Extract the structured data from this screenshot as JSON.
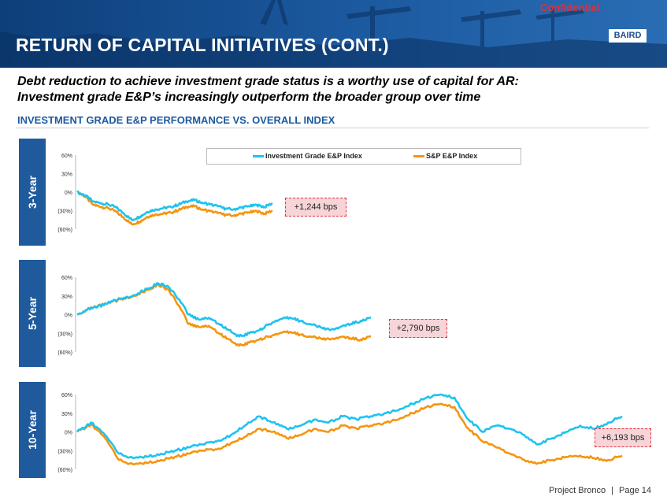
{
  "header": {
    "title": "RETURN OF CAPITAL INITIATIVES (CONT.)",
    "confidential": "Confidential",
    "logo": "BAIRD"
  },
  "subtitle": {
    "line1": "Debt reduction to achieve investment grade status is a worthy use of capital for AR:",
    "line2": "Investment grade E&P’s increasingly outperform the broader group over time"
  },
  "section_title": "INVESTMENT GRADE E&P PERFORMANCE VS. OVERALL INDEX",
  "legend": {
    "ig_label": "Investment Grade E&P Index",
    "sp_label": "S&P E&P Index"
  },
  "colors": {
    "ig": "#1ec3f0",
    "sp": "#f5950f",
    "tab": "#1f5a9c",
    "callout_border": "#e0303a",
    "callout_fill": "#f7d4d8"
  },
  "footer": {
    "project": "Project Bronco",
    "separator": "|",
    "page": "Page 14"
  },
  "chart_data": [
    {
      "type": "line",
      "title": "3-Year",
      "yticks": [
        "60%",
        "30%",
        "0%",
        "(30%)",
        "(60%)"
      ],
      "ylim": [
        -60,
        60
      ],
      "x": [
        0,
        1,
        2,
        3,
        4,
        5,
        6,
        7,
        8,
        9,
        10,
        11,
        12,
        13,
        14,
        15,
        16,
        17,
        18,
        19,
        20,
        21,
        22,
        23,
        24,
        25
      ],
      "series": [
        {
          "name": "Investment Grade E&P Index",
          "values": [
            0,
            -5,
            -15,
            -18,
            -20,
            -25,
            -35,
            -45,
            -40,
            -32,
            -28,
            -26,
            -24,
            -20,
            -15,
            -13,
            -17,
            -20,
            -23,
            -27,
            -28,
            -25,
            -23,
            -21,
            -24,
            -18
          ]
        },
        {
          "name": "S&P E&P Index",
          "values": [
            0,
            -7,
            -20,
            -24,
            -26,
            -32,
            -42,
            -52,
            -48,
            -40,
            -36,
            -35,
            -33,
            -29,
            -24,
            -23,
            -28,
            -31,
            -34,
            -37,
            -38,
            -35,
            -33,
            -31,
            -35,
            -30
          ]
        }
      ],
      "callout": "+1,244 bps"
    },
    {
      "type": "line",
      "title": "5-Year",
      "yticks": [
        "60%",
        "30%",
        "0%",
        "(30%)",
        "(60%)"
      ],
      "ylim": [
        -60,
        60
      ],
      "x": [
        0,
        1,
        2,
        3,
        4,
        5,
        6,
        7,
        8,
        9,
        10,
        11,
        12,
        13,
        14,
        15,
        16,
        17,
        18,
        19,
        20,
        21,
        22,
        23,
        24,
        25,
        26,
        27,
        28,
        29
      ],
      "series": [
        {
          "name": "Investment Grade E&P Index",
          "values": [
            0,
            8,
            12,
            18,
            24,
            28,
            34,
            42,
            50,
            45,
            25,
            0,
            -8,
            -5,
            -15,
            -25,
            -35,
            -30,
            -25,
            -15,
            -8,
            -5,
            -10,
            -15,
            -20,
            -25,
            -20,
            -15,
            -10,
            -5
          ]
        },
        {
          "name": "S&P E&P Index",
          "values": [
            0,
            8,
            13,
            18,
            23,
            27,
            33,
            40,
            48,
            40,
            15,
            -15,
            -20,
            -18,
            -30,
            -40,
            -50,
            -45,
            -40,
            -35,
            -30,
            -28,
            -32,
            -35,
            -38,
            -40,
            -36,
            -38,
            -40,
            -35
          ]
        }
      ],
      "callout": "+2,790 bps"
    },
    {
      "type": "line",
      "title": "10-Year",
      "yticks": [
        "60%",
        "30%",
        "0%",
        "(30%)",
        "(60%)"
      ],
      "ylim": [
        -60,
        60
      ],
      "x": [
        0,
        1,
        2,
        3,
        4,
        5,
        6,
        7,
        8,
        9,
        10,
        11,
        12,
        13,
        14,
        15,
        16,
        17,
        18,
        19,
        20,
        21,
        22,
        23,
        24,
        25,
        26,
        27,
        28,
        29,
        30,
        31,
        32,
        33,
        34,
        35,
        36,
        37,
        38,
        39
      ],
      "series": [
        {
          "name": "Investment Grade E&P Index",
          "values": [
            0,
            15,
            -5,
            -35,
            -42,
            -40,
            -35,
            -30,
            -25,
            -20,
            -15,
            -5,
            10,
            25,
            15,
            5,
            10,
            20,
            15,
            25,
            20,
            25,
            30,
            35,
            45,
            55,
            60,
            55,
            20,
            0,
            10,
            5,
            -5,
            -20,
            -10,
            0,
            10,
            5,
            15,
            25
          ]
        },
        {
          "name": "S&P E&P Index",
          "values": [
            0,
            12,
            -10,
            -45,
            -52,
            -50,
            -45,
            -40,
            -35,
            -30,
            -28,
            -18,
            -8,
            5,
            0,
            -10,
            -5,
            5,
            0,
            10,
            5,
            10,
            15,
            20,
            30,
            40,
            45,
            40,
            5,
            -15,
            -25,
            -35,
            -45,
            -50,
            -45,
            -40,
            -38,
            -42,
            -45,
            -38
          ]
        }
      ],
      "callout": "+6,193 bps"
    }
  ]
}
